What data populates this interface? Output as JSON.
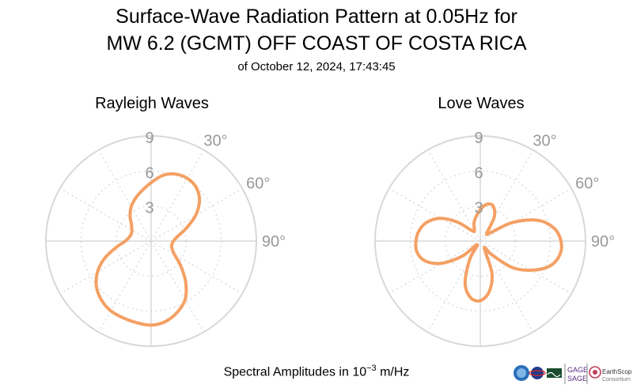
{
  "title_line1": "Surface-Wave Radiation Pattern at 0.05Hz for",
  "title_line2": "MW 6.2 (GCMT) OFF COAST OF COSTA RICA",
  "subtitle": "of October 12, 2024, 17:43:45",
  "footer": {
    "prefix": "Spectral Amplitudes in ",
    "base": "10",
    "exponent": "−3",
    "unit": " m/Hz"
  },
  "logos": {
    "gage": "GAGE",
    "sage": "SAGE",
    "earthscope": "EarthScope",
    "consortium": "Consortium"
  },
  "colors": {
    "curve": "#F4A064",
    "grid": "#D8D8D8",
    "tick_text": "#999999"
  },
  "chart_data": [
    {
      "type": "polar-line",
      "title": "Rayleigh Waves",
      "radial_ticks": [
        3,
        6,
        9
      ],
      "radial_max": 9,
      "angular_tick_labels": [
        "30°",
        "60°",
        "90°"
      ],
      "theta_deg": [
        0,
        10,
        20,
        30,
        40,
        50,
        60,
        70,
        80,
        90,
        100,
        110,
        120,
        130,
        140,
        150,
        160,
        170,
        180,
        190,
        200,
        210,
        220,
        230,
        240,
        250,
        260,
        270,
        280,
        290,
        300,
        310,
        320,
        330,
        340,
        350
      ],
      "r": [
        5.0,
        5.7,
        6.1,
        6.2,
        6.0,
        5.4,
        4.4,
        3.2,
        2.3,
        1.9,
        1.8,
        1.9,
        2.3,
        3.3,
        4.6,
        5.8,
        6.5,
        7.0,
        7.2,
        7.1,
        7.0,
        6.9,
        6.6,
        6.1,
        5.3,
        4.2,
        3.0,
        2.2,
        1.9,
        1.8,
        1.9,
        2.2,
        2.8,
        3.4,
        3.9,
        4.4
      ]
    },
    {
      "type": "polar-line",
      "title": "Love Waves",
      "radial_ticks": [
        3,
        6,
        9
      ],
      "radial_max": 9,
      "angular_tick_labels": [
        "30°",
        "60°",
        "90°"
      ],
      "theta_deg": [
        0,
        10,
        20,
        30,
        40,
        50,
        60,
        70,
        80,
        90,
        100,
        110,
        120,
        130,
        140,
        150,
        160,
        170,
        180,
        190,
        200,
        210,
        220,
        230,
        240,
        250,
        260,
        270,
        280,
        290,
        300,
        310,
        320,
        330,
        340,
        350
      ],
      "r": [
        2.7,
        3.2,
        3.2,
        2.4,
        0.9,
        1.1,
        3.2,
        5.2,
        6.4,
        6.9,
        6.9,
        6.3,
        5.0,
        3.5,
        1.5,
        0.7,
        2.9,
        4.4,
        5.1,
        4.9,
        3.8,
        1.8,
        0.4,
        2.0,
        3.8,
        5.0,
        5.5,
        5.5,
        5.3,
        4.8,
        3.9,
        2.5,
        1.2,
        1.0,
        1.6,
        2.1
      ]
    }
  ]
}
